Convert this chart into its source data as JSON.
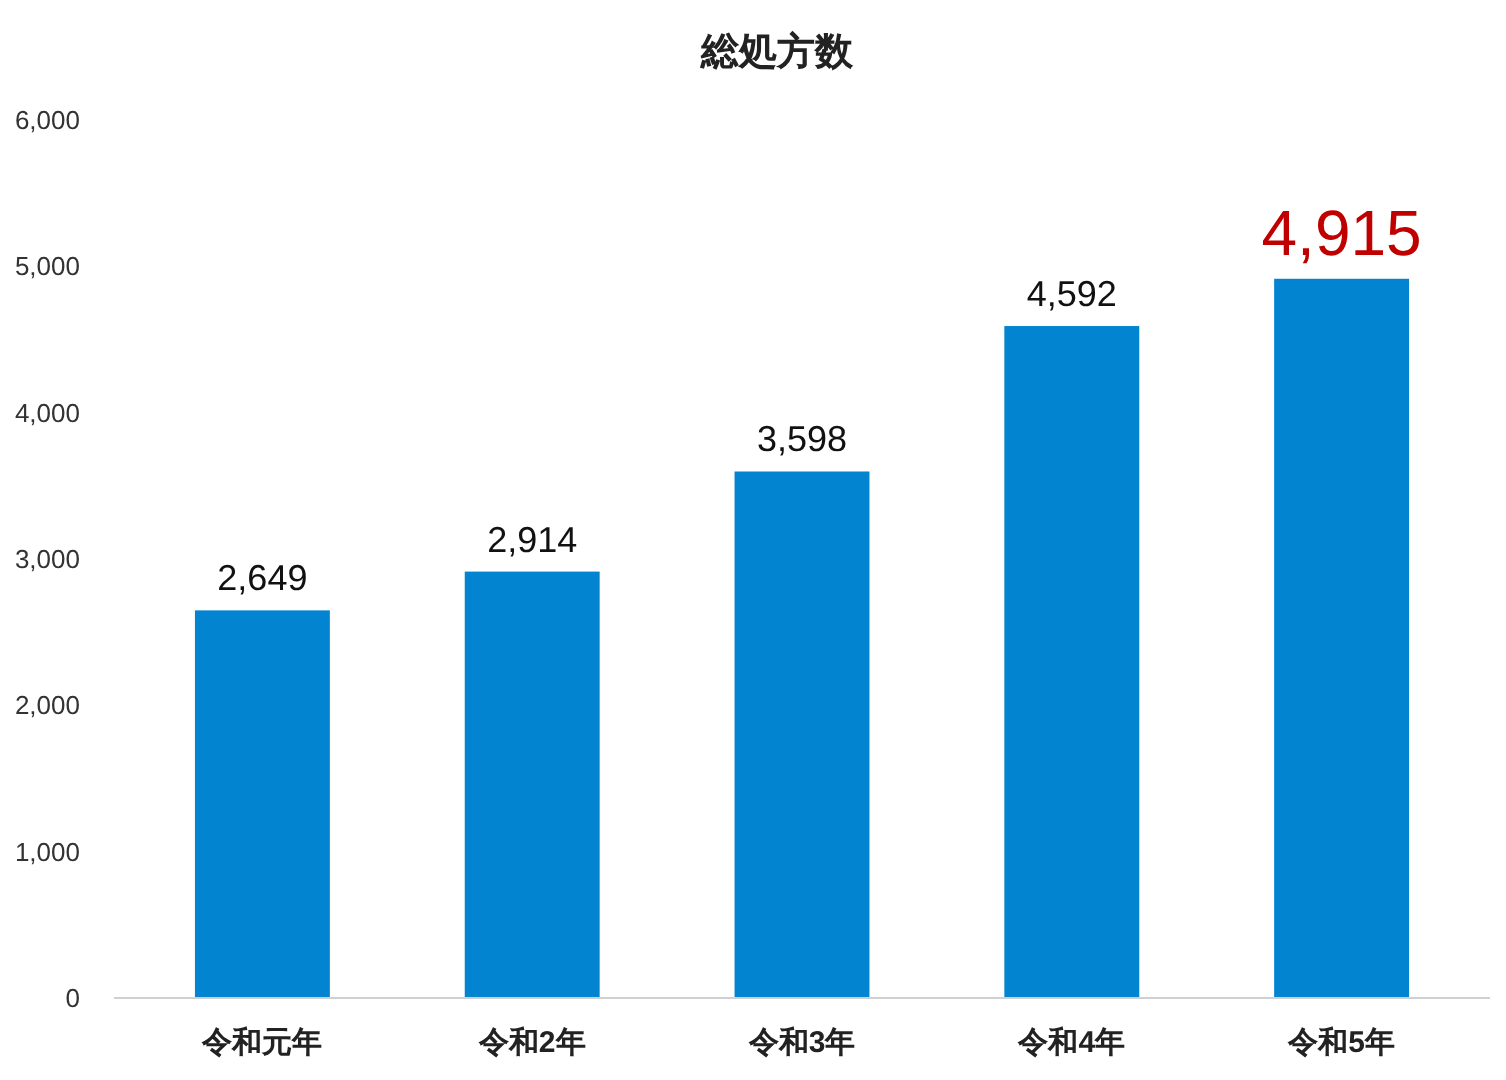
{
  "chart_data": {
    "type": "bar",
    "title": "総処方数",
    "categories": [
      "令和元年",
      "令和2年",
      "令和3年",
      "令和4年",
      "令和5年"
    ],
    "values": [
      2649,
      2914,
      3598,
      4592,
      4915
    ],
    "value_labels": [
      "2,649",
      "2,914",
      "3,598",
      "4,592",
      "4,915"
    ],
    "color": "#0284d0",
    "ylim": [
      0,
      6000
    ],
    "yticks": [
      0,
      {
        "value": 1000,
        "label": "1,000"
      },
      {
        "value": 2000,
        "label": "2,000"
      },
      {
        "value": 3000,
        "label": "3,000"
      },
      {
        "value": 4000,
        "label": "4,000"
      },
      {
        "value": 5000,
        "label": "5,000"
      },
      {
        "value": 6000,
        "label": "6,000"
      }
    ],
    "grid": false
  }
}
